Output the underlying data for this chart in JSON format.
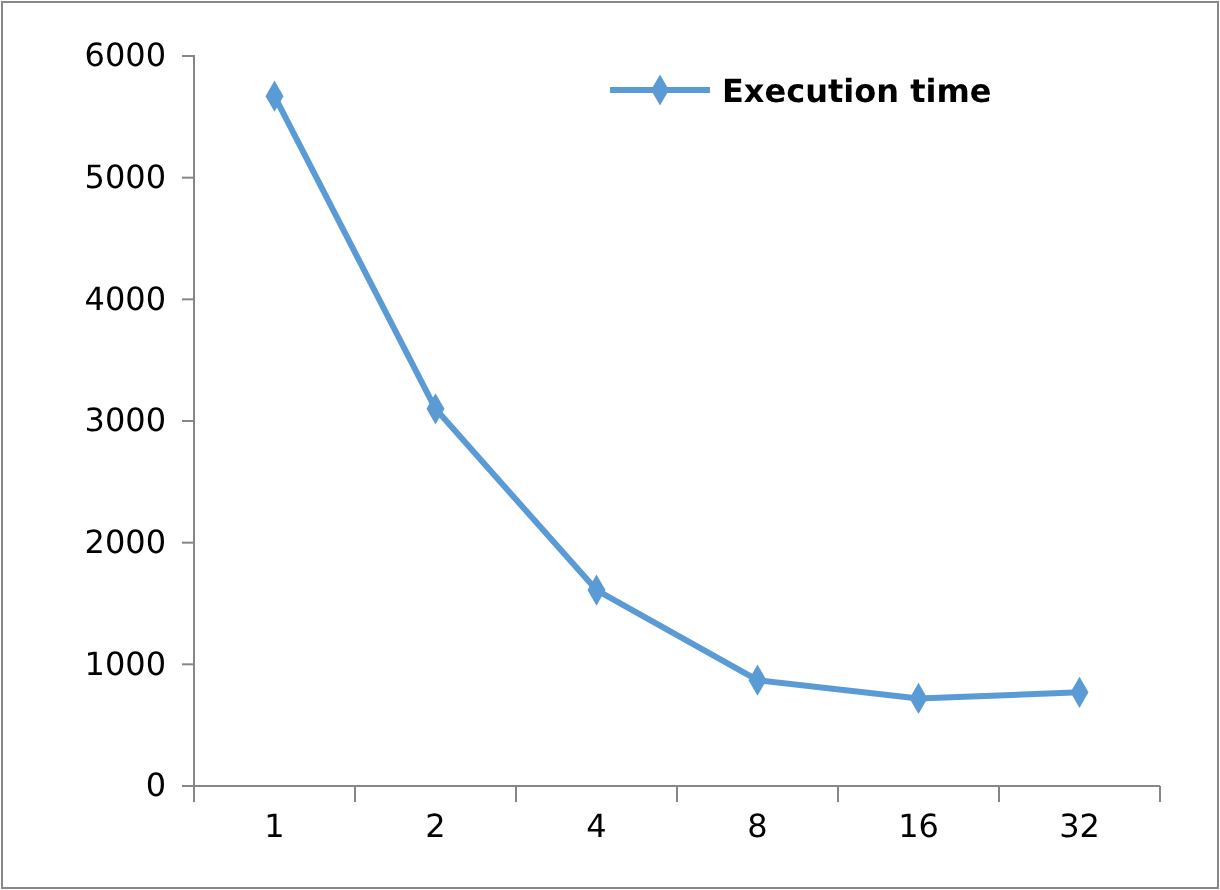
{
  "chart_data": {
    "type": "line",
    "categories": [
      "1",
      "2",
      "4",
      "8",
      "16",
      "32"
    ],
    "series": [
      {
        "name": "Execution time",
        "color": "#5b9bd5",
        "values": [
          5670,
          3100,
          1610,
          870,
          720,
          770
        ]
      }
    ],
    "ylim": [
      0,
      6000
    ],
    "yticks": [
      0,
      1000,
      2000,
      3000,
      4000,
      5000,
      6000
    ],
    "grid": false,
    "legend": "top right",
    "marker": "diamond",
    "line_style": "solid"
  }
}
